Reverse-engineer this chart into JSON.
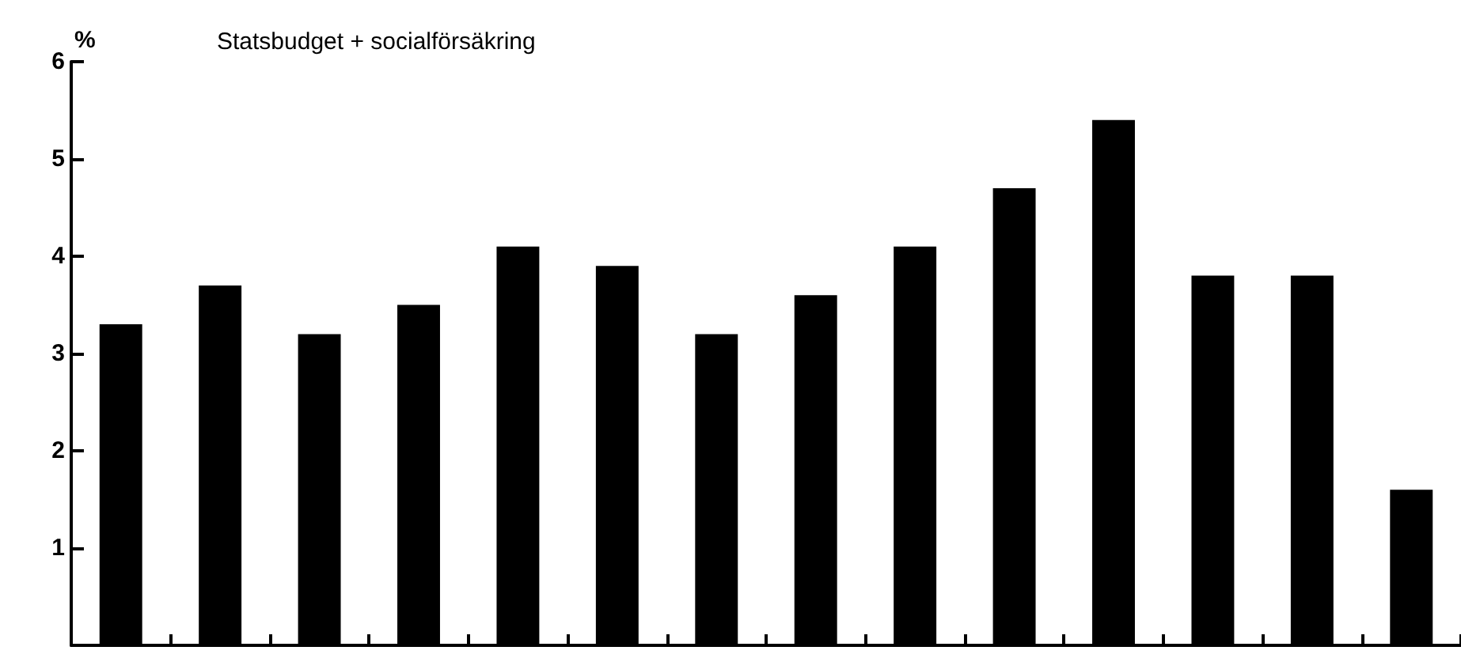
{
  "chart_data": {
    "type": "bar",
    "title": "Statsbudget + socialförsäkring",
    "ylabel": "%",
    "categories": [
      null,
      null,
      null,
      null,
      null,
      null,
      null,
      null,
      null,
      null,
      null,
      null,
      null,
      null
    ],
    "values": [
      3.3,
      3.7,
      3.2,
      3.5,
      4.1,
      3.9,
      3.2,
      3.6,
      4.1,
      4.7,
      5.4,
      3.8,
      3.8,
      1.6
    ],
    "color": "#000000",
    "ylim": [
      0,
      6
    ],
    "yticks": [
      1,
      2,
      3,
      4,
      5,
      6
    ],
    "grid": false
  }
}
